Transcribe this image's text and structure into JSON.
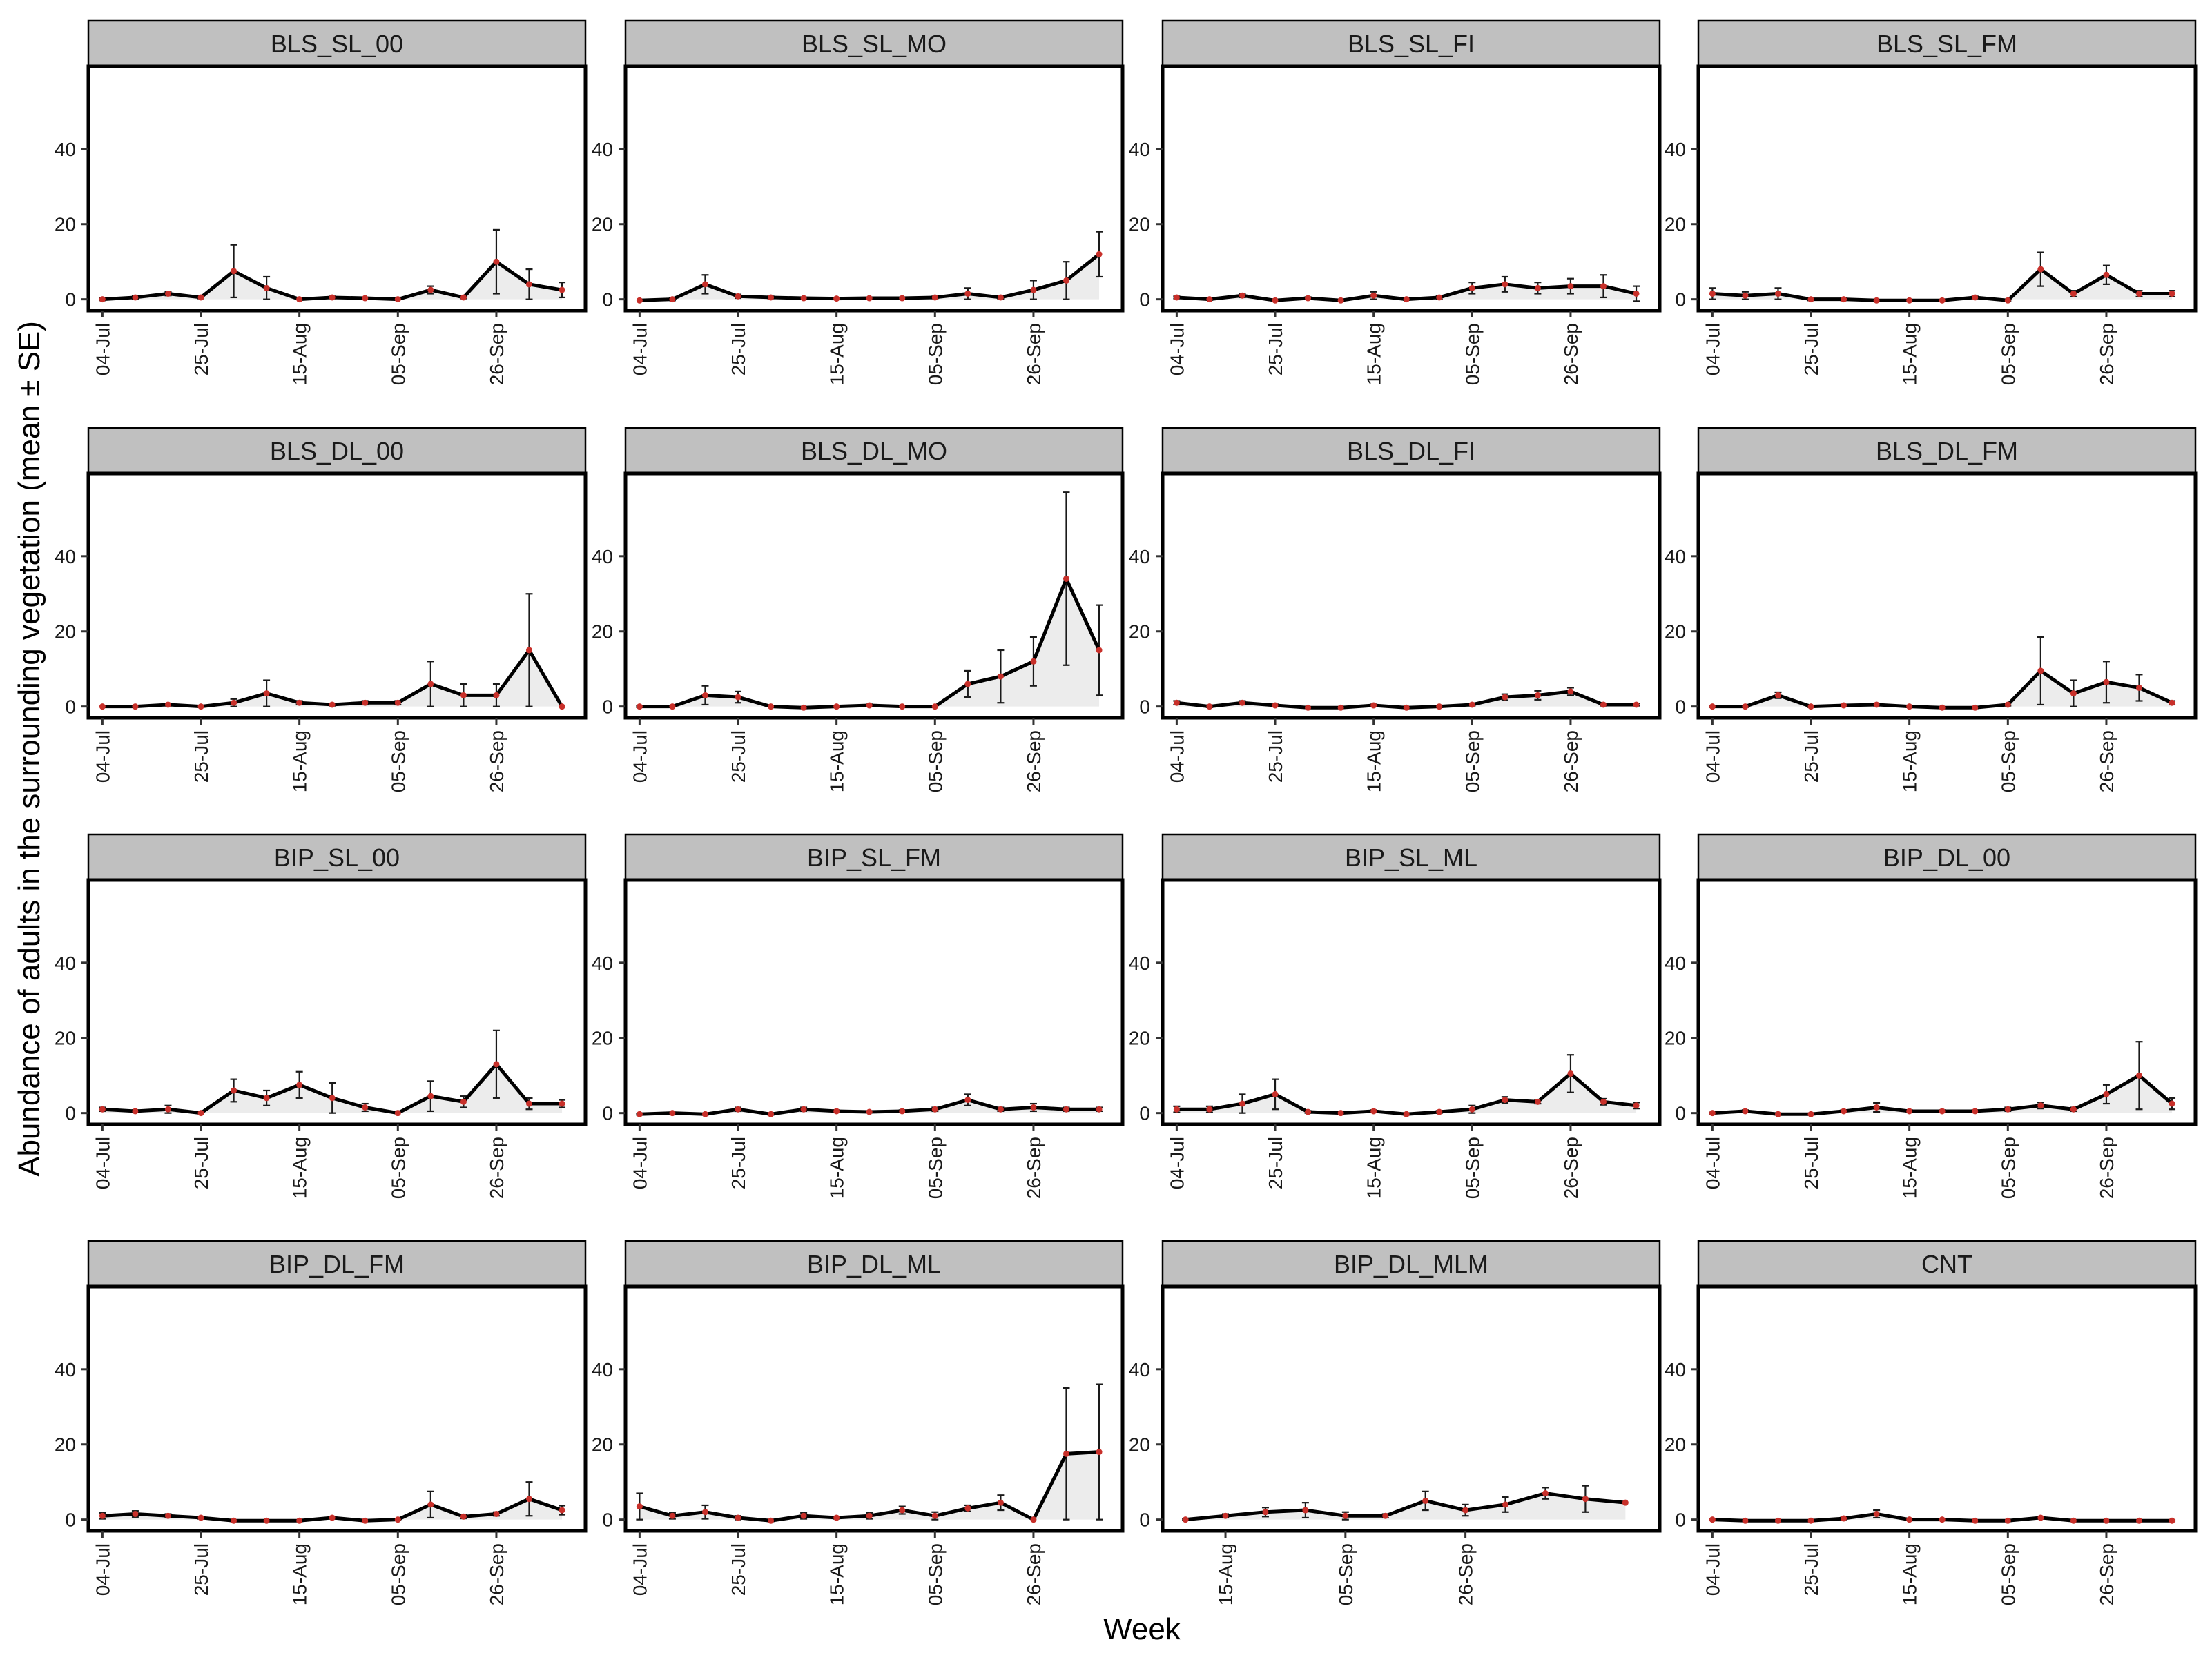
{
  "chart_data": {
    "type": "line",
    "xlabel": "Week",
    "ylabel": "Abundance of adults in the surrounding vegetation (mean ± SE)",
    "ylim": [
      -3,
      62
    ],
    "yticks": [
      0,
      20,
      40
    ],
    "x_range_days": [
      -3,
      103
    ],
    "x_tick_labels": [
      "04-Jul",
      "25-Jul",
      "15-Aug",
      "05-Sep",
      "26-Sep"
    ],
    "x_tick_days": [
      0,
      21,
      42,
      63,
      84
    ],
    "grid": false,
    "legend": "none",
    "colors": {
      "line": "#000000",
      "point": "#c8302a",
      "ribbon": "#ececec",
      "strip": "#c0c0c0"
    },
    "panels": [
      {
        "name": "BLS_SL_00",
        "x_ticks": [
          "04-Jul",
          "25-Jul",
          "15-Aug",
          "05-Sep",
          "26-Sep"
        ],
        "x": [
          0,
          7,
          14,
          21,
          28,
          35,
          42,
          49,
          56,
          63,
          70,
          77,
          84,
          91,
          98
        ],
        "y": [
          0,
          0.5,
          1.5,
          0.5,
          7.5,
          3,
          0,
          0.5,
          0.3,
          0,
          2.5,
          0.5,
          10,
          4,
          2.5
        ],
        "se": [
          0.3,
          0.5,
          0.5,
          0.3,
          7,
          3,
          0,
          0.3,
          0.2,
          0,
          1,
          0.3,
          8.5,
          4,
          2
        ]
      },
      {
        "name": "BLS_SL_MO",
        "x_ticks": [
          "04-Jul",
          "25-Jul",
          "15-Aug",
          "05-Sep",
          "26-Sep"
        ],
        "x": [
          0,
          7,
          14,
          21,
          28,
          35,
          42,
          49,
          56,
          63,
          70,
          77,
          84,
          91,
          98
        ],
        "y": [
          -0.3,
          0,
          4,
          0.8,
          0.5,
          0.3,
          0.2,
          0.3,
          0.3,
          0.5,
          1.5,
          0.5,
          2.5,
          5,
          12
        ],
        "se": [
          0,
          0.3,
          2.5,
          0.5,
          0.3,
          0.2,
          0.2,
          0.2,
          0.2,
          0.3,
          1.5,
          0.5,
          2.5,
          5,
          6
        ]
      },
      {
        "name": "BLS_SL_FI",
        "x_ticks": [
          "04-Jul",
          "25-Jul",
          "15-Aug",
          "05-Sep",
          "26-Sep"
        ],
        "x": [
          0,
          7,
          14,
          21,
          28,
          35,
          42,
          49,
          56,
          63,
          70,
          77,
          84,
          91,
          98
        ],
        "y": [
          0.5,
          0,
          1,
          -0.3,
          0.3,
          -0.3,
          1,
          0,
          0.5,
          3,
          4,
          3,
          3.5,
          3.5,
          1.5
        ],
        "se": [
          0.3,
          0.2,
          0.5,
          0.2,
          0.3,
          0.2,
          1,
          0.2,
          0.5,
          1.5,
          2,
          1.5,
          2,
          3,
          2
        ]
      },
      {
        "name": "BLS_SL_FM",
        "x_ticks": [
          "04-Jul",
          "25-Jul",
          "15-Aug",
          "05-Sep",
          "26-Sep"
        ],
        "x": [
          0,
          7,
          14,
          21,
          28,
          35,
          42,
          49,
          56,
          63,
          70,
          77,
          84,
          91,
          98
        ],
        "y": [
          1.5,
          1,
          1.5,
          0,
          0,
          -0.3,
          -0.3,
          -0.3,
          0.5,
          -0.3,
          8,
          1.5,
          6.5,
          1.5,
          1.5
        ],
        "se": [
          1.5,
          1,
          1.5,
          0.3,
          0.3,
          0.2,
          0.2,
          0.2,
          0.3,
          0.2,
          4.5,
          0.8,
          2.5,
          0.8,
          0.8
        ]
      },
      {
        "name": "BLS_DL_00",
        "x_ticks": [
          "04-Jul",
          "25-Jul",
          "15-Aug",
          "05-Sep",
          "26-Sep"
        ],
        "x": [
          0,
          7,
          14,
          21,
          28,
          35,
          42,
          49,
          56,
          63,
          70,
          77,
          84,
          91,
          98
        ],
        "y": [
          0,
          0,
          0.5,
          0,
          1,
          3.5,
          1,
          0.5,
          1,
          1,
          6,
          3,
          3,
          15,
          0
        ],
        "se": [
          0,
          0,
          0.3,
          0,
          1,
          3.5,
          0.5,
          0.3,
          0.5,
          0.5,
          6,
          3,
          3,
          15,
          0
        ]
      },
      {
        "name": "BLS_DL_MO",
        "x_ticks": [
          "04-Jul",
          "25-Jul",
          "15-Aug",
          "05-Sep",
          "26-Sep"
        ],
        "x": [
          0,
          7,
          14,
          21,
          28,
          35,
          42,
          49,
          56,
          63,
          70,
          77,
          84,
          91,
          98
        ],
        "y": [
          0,
          0,
          3,
          2.5,
          0,
          -0.3,
          0,
          0.3,
          0,
          0,
          6,
          8,
          12,
          34,
          15
        ],
        "se": [
          0.2,
          0,
          2.5,
          1.5,
          0,
          0.2,
          0,
          0.3,
          0,
          0,
          3.5,
          7,
          6.5,
          23,
          12
        ]
      },
      {
        "name": "BLS_DL_FI",
        "x_ticks": [
          "04-Jul",
          "25-Jul",
          "15-Aug",
          "05-Sep",
          "26-Sep"
        ],
        "x": [
          0,
          7,
          14,
          21,
          28,
          35,
          42,
          49,
          56,
          63,
          70,
          77,
          84,
          91,
          98
        ],
        "y": [
          1,
          0,
          1,
          0.3,
          -0.3,
          -0.3,
          0.3,
          -0.3,
          0,
          0.5,
          2.5,
          3,
          4,
          0.5,
          0.5
        ],
        "se": [
          0.5,
          0.2,
          0.5,
          0.3,
          0.2,
          0.2,
          0.3,
          0.2,
          0.2,
          0.3,
          0.8,
          1.2,
          1,
          0.3,
          0.3
        ]
      },
      {
        "name": "BLS_DL_FM",
        "x_ticks": [
          "04-Jul",
          "25-Jul",
          "15-Aug",
          "05-Sep",
          "26-Sep"
        ],
        "x": [
          0,
          7,
          14,
          21,
          28,
          35,
          42,
          49,
          56,
          63,
          70,
          77,
          84,
          91,
          98
        ],
        "y": [
          0,
          0,
          3,
          0,
          0.3,
          0.5,
          0,
          -0.3,
          -0.3,
          0.5,
          9.5,
          3.5,
          6.5,
          5,
          1
        ],
        "se": [
          0.2,
          0.2,
          0.8,
          0.2,
          0.2,
          0.3,
          0.2,
          0.2,
          0.2,
          0.3,
          9,
          3.5,
          5.5,
          3.5,
          0.5
        ]
      },
      {
        "name": "BIP_SL_00",
        "x_ticks": [
          "04-Jul",
          "25-Jul",
          "15-Aug",
          "05-Sep",
          "26-Sep"
        ],
        "x": [
          0,
          7,
          14,
          21,
          28,
          35,
          42,
          49,
          56,
          63,
          70,
          77,
          84,
          91,
          98
        ],
        "y": [
          1,
          0.5,
          1,
          0,
          6,
          4,
          7.5,
          4,
          1.5,
          0,
          4.5,
          3,
          13,
          2.5,
          2.5
        ],
        "se": [
          0.5,
          0.3,
          1,
          0,
          3,
          2,
          3.5,
          4,
          1,
          0,
          4,
          1.5,
          9,
          1.5,
          1
        ]
      },
      {
        "name": "BIP_SL_FM",
        "x_ticks": [
          "04-Jul",
          "25-Jul",
          "15-Aug",
          "05-Sep",
          "26-Sep"
        ],
        "x": [
          0,
          7,
          14,
          21,
          28,
          35,
          42,
          49,
          56,
          63,
          70,
          77,
          84,
          91,
          98
        ],
        "y": [
          -0.3,
          0,
          -0.3,
          1,
          -0.3,
          1,
          0.5,
          0.3,
          0.5,
          1,
          3.5,
          1,
          1.5,
          1,
          1
        ],
        "se": [
          0.2,
          0.2,
          0.2,
          0.5,
          0.2,
          0.5,
          0.3,
          0.2,
          0.3,
          0.5,
          1.5,
          0.5,
          1,
          0.5,
          0.5
        ]
      },
      {
        "name": "BIP_SL_ML",
        "x_ticks": [
          "04-Jul",
          "25-Jul",
          "15-Aug",
          "05-Sep",
          "26-Sep"
        ],
        "x": [
          0,
          7,
          14,
          21,
          28,
          35,
          42,
          49,
          56,
          63,
          70,
          77,
          84,
          91,
          98
        ],
        "y": [
          1,
          1,
          2.5,
          5,
          0.3,
          0,
          0.5,
          -0.3,
          0.3,
          1,
          3.5,
          3,
          10.5,
          3,
          2
        ],
        "se": [
          0.8,
          0.8,
          2.5,
          4,
          0.3,
          0.2,
          0.3,
          0.2,
          0.3,
          1,
          0.8,
          0.5,
          5,
          0.8,
          0.8
        ]
      },
      {
        "name": "BIP_DL_00",
        "x_ticks": [
          "04-Jul",
          "25-Jul",
          "15-Aug",
          "05-Sep",
          "26-Sep"
        ],
        "x": [
          0,
          7,
          14,
          21,
          28,
          35,
          42,
          49,
          56,
          63,
          70,
          77,
          84,
          91,
          98
        ],
        "y": [
          0,
          0.5,
          -0.3,
          -0.3,
          0.5,
          1.5,
          0.5,
          0.5,
          0.5,
          1,
          2,
          1,
          5,
          10,
          2.5
        ],
        "se": [
          0.2,
          0.3,
          0.2,
          0.2,
          0.3,
          1.2,
          0.3,
          0.3,
          0.3,
          0.5,
          0.8,
          0.5,
          2.5,
          9,
          1.5
        ]
      },
      {
        "name": "BIP_DL_FM",
        "x_ticks": [
          "04-Jul",
          "25-Jul",
          "15-Aug",
          "05-Sep",
          "26-Sep"
        ],
        "x": [
          0,
          7,
          14,
          21,
          28,
          35,
          42,
          49,
          56,
          63,
          70,
          77,
          84,
          91,
          98
        ],
        "y": [
          1,
          1.5,
          1,
          0.5,
          -0.3,
          -0.3,
          -0.3,
          0.5,
          -0.3,
          0,
          4,
          0.8,
          1.5,
          5.5,
          2.5
        ],
        "se": [
          0.8,
          0.8,
          0.5,
          0.3,
          0.2,
          0.2,
          0.2,
          0.3,
          0.2,
          0.2,
          3.5,
          0.5,
          0.5,
          4.5,
          1.2
        ]
      },
      {
        "name": "BIP_DL_ML",
        "x_ticks": [
          "04-Jul",
          "25-Jul",
          "15-Aug",
          "05-Sep",
          "26-Sep"
        ],
        "x": [
          0,
          7,
          14,
          21,
          28,
          35,
          42,
          49,
          56,
          63,
          70,
          77,
          84,
          91,
          98
        ],
        "y": [
          3.5,
          1,
          2,
          0.5,
          -0.3,
          1,
          0.5,
          1,
          2.5,
          1,
          3,
          4.5,
          0,
          17.5,
          18
        ],
        "se": [
          3.5,
          0.8,
          1.8,
          0.5,
          0.2,
          0.8,
          0.3,
          0.8,
          1,
          1,
          0.8,
          2,
          0,
          17.5,
          18
        ]
      },
      {
        "name": "BIP_DL_MLM",
        "x_ticks": [
          "15-Aug",
          "05-Sep",
          "26-Sep"
        ],
        "x": [
          35,
          42,
          49,
          56,
          63,
          70,
          77,
          84,
          91,
          98,
          105,
          112
        ],
        "y": [
          0,
          1,
          2,
          2.5,
          1,
          1,
          5,
          2.5,
          4,
          7,
          5.5,
          4.5
        ],
        "se": [
          0.2,
          0.5,
          1.2,
          2,
          1,
          0.5,
          2.5,
          1.5,
          2,
          1.5,
          3.5,
          0
        ],
        "x_range_days": [
          31,
          118
        ]
      },
      {
        "name": "CNT",
        "x_ticks": [
          "04-Jul",
          "25-Jul",
          "15-Aug",
          "05-Sep",
          "26-Sep"
        ],
        "x": [
          0,
          7,
          14,
          21,
          28,
          35,
          42,
          49,
          56,
          63,
          70,
          77,
          84,
          91,
          98
        ],
        "y": [
          0,
          -0.3,
          -0.3,
          -0.3,
          0.3,
          1.5,
          0,
          0,
          -0.3,
          -0.3,
          0.5,
          -0.3,
          -0.3,
          -0.3,
          -0.3
        ],
        "se": [
          0.2,
          0.2,
          0.2,
          0.2,
          0.3,
          1,
          0.2,
          0.2,
          0.2,
          0.2,
          0.3,
          0.2,
          0.2,
          0.2,
          0.2
        ]
      }
    ]
  }
}
